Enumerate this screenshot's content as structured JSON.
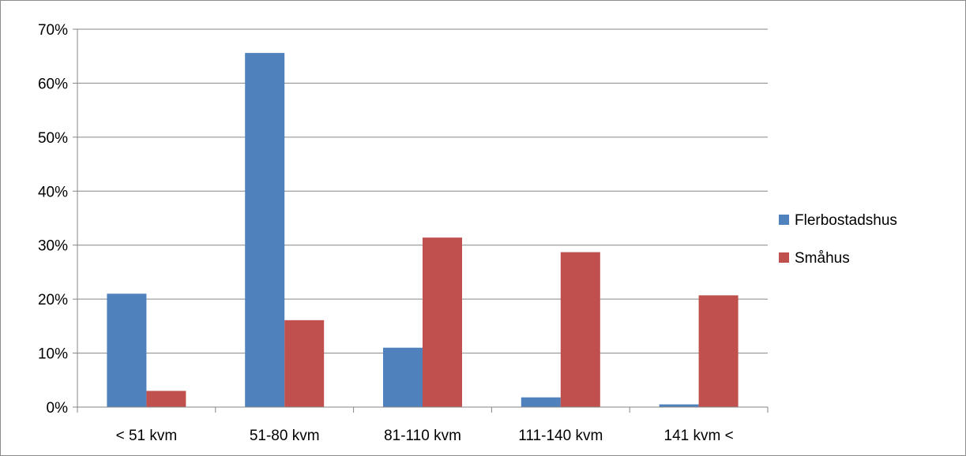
{
  "chart_data": {
    "type": "bar",
    "title": "",
    "xlabel": "",
    "ylabel": "",
    "categories": [
      "< 51 kvm",
      "51-80 kvm",
      "81-110 kvm",
      "111-140 kvm",
      "141 kvm <"
    ],
    "series": [
      {
        "name": "Flerbostadshus",
        "color": "#4f81bd",
        "values": [
          21.0,
          65.6,
          11.0,
          1.8,
          0.5
        ]
      },
      {
        "name": "Småhus",
        "color": "#c0504d",
        "values": [
          3.0,
          16.1,
          31.4,
          28.7,
          20.7
        ]
      }
    ],
    "ylim": [
      0,
      70
    ],
    "yticks": [
      "0%",
      "10%",
      "20%",
      "30%",
      "40%",
      "50%",
      "60%",
      "70%"
    ],
    "grid": true,
    "legend_position": "right"
  }
}
